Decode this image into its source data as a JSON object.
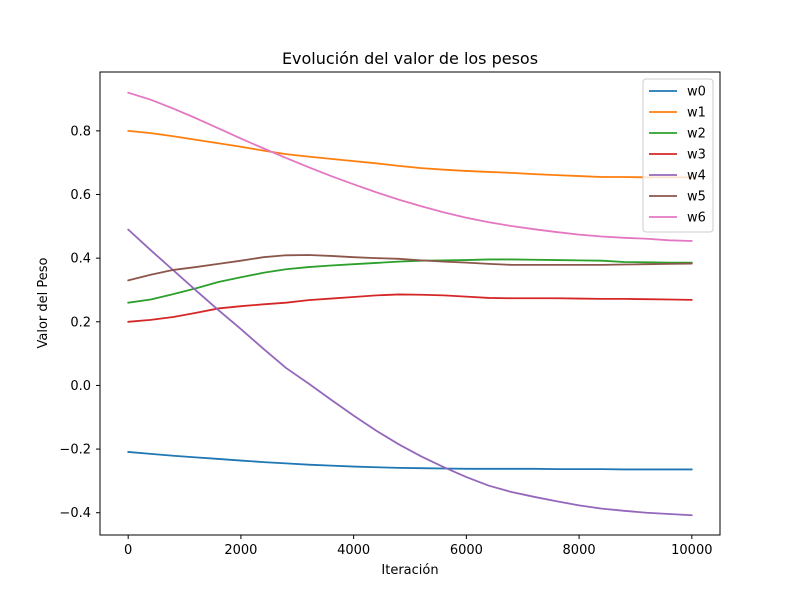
{
  "chart_data": {
    "type": "line",
    "title": "Evolución del valor de los pesos",
    "xlabel": "Iteración",
    "ylabel": "Valor del Peso",
    "xlim": [
      -500,
      10500
    ],
    "ylim": [
      -0.47,
      0.985
    ],
    "xticks": [
      0,
      2000,
      4000,
      6000,
      8000,
      10000
    ],
    "xtick_labels": [
      "0",
      "2000",
      "4000",
      "6000",
      "8000",
      "10000"
    ],
    "yticks": [
      -0.4,
      -0.2,
      0.0,
      0.2,
      0.4,
      0.6,
      0.8
    ],
    "ytick_labels": [
      "−0.4",
      "−0.2",
      "0.0",
      "0.2",
      "0.4",
      "0.6",
      "0.8"
    ],
    "grid": false,
    "legend_position": "top-right",
    "x": [
      0,
      400,
      800,
      1200,
      1600,
      2000,
      2400,
      2800,
      3200,
      3600,
      4000,
      4400,
      4800,
      5200,
      5600,
      6000,
      6400,
      6800,
      7200,
      7600,
      8000,
      8400,
      8800,
      9200,
      9600,
      10000
    ],
    "series": [
      {
        "name": "w0",
        "color": "#1f77b4",
        "values": [
          -0.209,
          -0.215,
          -0.221,
          -0.226,
          -0.231,
          -0.236,
          -0.241,
          -0.245,
          -0.249,
          -0.252,
          -0.255,
          -0.257,
          -0.259,
          -0.26,
          -0.261,
          -0.262,
          -0.262,
          -0.262,
          -0.262,
          -0.263,
          -0.263,
          -0.263,
          -0.264,
          -0.264,
          -0.264,
          -0.264
        ]
      },
      {
        "name": "w1",
        "color": "#ff7f0e",
        "values": [
          0.8,
          0.793,
          0.783,
          0.772,
          0.761,
          0.75,
          0.738,
          0.727,
          0.719,
          0.712,
          0.705,
          0.698,
          0.69,
          0.683,
          0.678,
          0.674,
          0.671,
          0.668,
          0.664,
          0.661,
          0.658,
          0.655,
          0.655,
          0.654,
          0.654,
          0.654
        ]
      },
      {
        "name": "w2",
        "color": "#2ca02c",
        "values": [
          0.26,
          0.27,
          0.287,
          0.305,
          0.325,
          0.34,
          0.354,
          0.365,
          0.372,
          0.377,
          0.381,
          0.385,
          0.389,
          0.392,
          0.393,
          0.394,
          0.396,
          0.396,
          0.395,
          0.394,
          0.393,
          0.392,
          0.388,
          0.387,
          0.386,
          0.386
        ]
      },
      {
        "name": "w3",
        "color": "#d62728",
        "values": [
          0.2,
          0.206,
          0.215,
          0.228,
          0.242,
          0.249,
          0.255,
          0.26,
          0.268,
          0.273,
          0.278,
          0.283,
          0.286,
          0.285,
          0.283,
          0.279,
          0.275,
          0.274,
          0.274,
          0.274,
          0.273,
          0.272,
          0.272,
          0.271,
          0.27,
          0.269
        ]
      },
      {
        "name": "w4",
        "color": "#9467bd",
        "values": [
          0.49,
          0.425,
          0.362,
          0.299,
          0.237,
          0.177,
          0.115,
          0.055,
          0.006,
          -0.045,
          -0.095,
          -0.142,
          -0.185,
          -0.223,
          -0.257,
          -0.288,
          -0.315,
          -0.335,
          -0.35,
          -0.364,
          -0.377,
          -0.387,
          -0.394,
          -0.4,
          -0.404,
          -0.408
        ]
      },
      {
        "name": "w5",
        "color": "#8c564b",
        "values": [
          0.33,
          0.348,
          0.363,
          0.372,
          0.382,
          0.392,
          0.403,
          0.409,
          0.41,
          0.407,
          0.403,
          0.4,
          0.398,
          0.393,
          0.389,
          0.386,
          0.382,
          0.379,
          0.379,
          0.379,
          0.379,
          0.379,
          0.38,
          0.381,
          0.382,
          0.383
        ]
      },
      {
        "name": "w6",
        "color": "#e377c2",
        "values": [
          0.92,
          0.898,
          0.87,
          0.84,
          0.808,
          0.776,
          0.745,
          0.715,
          0.686,
          0.658,
          0.632,
          0.607,
          0.584,
          0.563,
          0.544,
          0.527,
          0.513,
          0.501,
          0.491,
          0.482,
          0.474,
          0.468,
          0.464,
          0.461,
          0.456,
          0.454
        ]
      }
    ]
  }
}
